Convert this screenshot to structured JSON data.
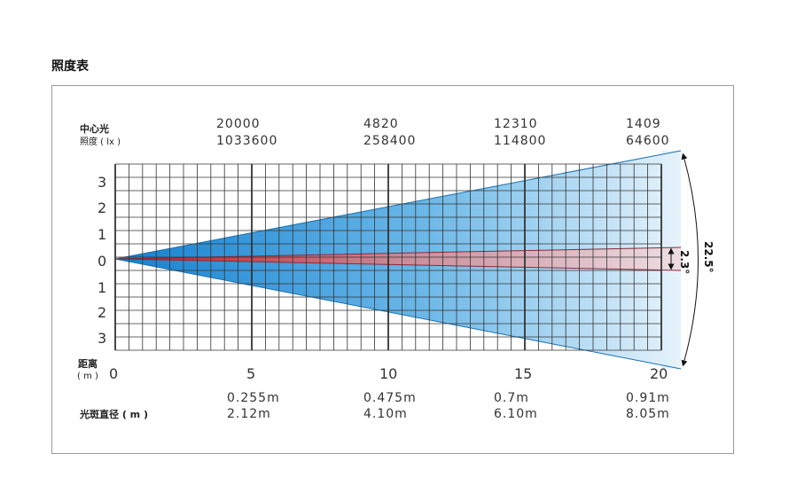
{
  "title": "照度表",
  "labels": {
    "center_line1": "中心光",
    "center_line2": "照度 ( lx )",
    "distance_line1": "距离",
    "distance_line2": "( m )",
    "spot_diameter": "光斑直径 ( m )"
  },
  "y_ticks": [
    "3",
    "2",
    "1",
    "0",
    "1",
    "2",
    "3"
  ],
  "x_ticks": [
    "0",
    "5",
    "10",
    "15",
    "20"
  ],
  "columns": [
    {
      "distance": "5",
      "lux_narrow": "20000",
      "lux_wide": "1033600",
      "spot_narrow": "0.255m",
      "spot_wide": "2.12m"
    },
    {
      "distance": "10",
      "lux_narrow": "4820",
      "lux_wide": "258400",
      "spot_narrow": "0.475m",
      "spot_wide": "4.10m"
    },
    {
      "distance": "15",
      "lux_narrow": "12310",
      "lux_wide": "114800",
      "spot_narrow": "0.7m",
      "spot_wide": "6.10m"
    },
    {
      "distance": "20",
      "lux_narrow": "1409",
      "lux_wide": "64600",
      "spot_narrow": "0.91m",
      "spot_wide": "8.05m"
    }
  ],
  "angles": {
    "narrow": "2.3°",
    "wide": "22.5°"
  },
  "colors": {
    "wide_beam": "#1a8bd6",
    "narrow_beam": "#c0282e",
    "grid": "#333333"
  }
}
